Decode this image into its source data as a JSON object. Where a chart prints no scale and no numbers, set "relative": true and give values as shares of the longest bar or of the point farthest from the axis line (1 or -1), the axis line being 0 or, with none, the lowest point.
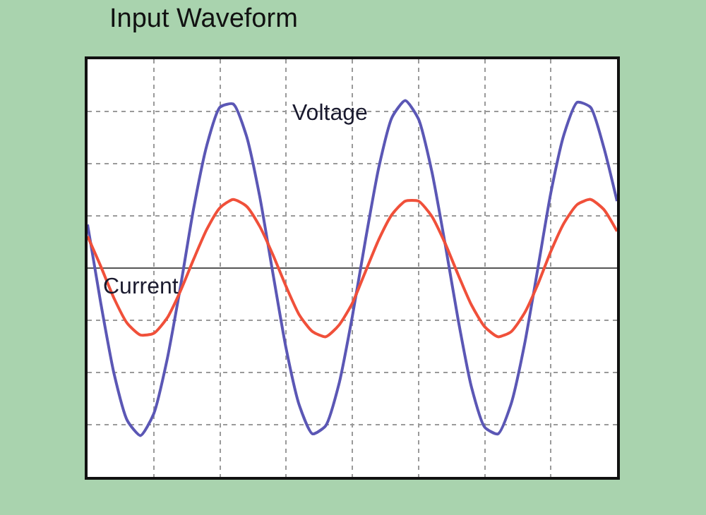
{
  "chart_data": {
    "type": "line",
    "title": "Input Waveform",
    "relative": true,
    "grid": true,
    "legend": false,
    "marker": "none",
    "line_style": "solid",
    "categories": [
      null,
      null,
      null,
      null,
      null,
      null,
      null,
      null,
      null,
      null,
      null,
      null,
      null,
      null,
      null,
      null,
      null,
      null,
      null,
      null,
      null,
      null,
      null,
      null,
      null,
      null,
      null,
      null,
      null,
      null,
      null,
      null,
      null,
      null,
      null,
      null,
      null,
      null,
      null,
      null,
      null
    ],
    "series": [
      {
        "name": "Voltage",
        "color": "#5b57b5",
        "values": [
          0.26,
          -0.21,
          -0.63,
          -0.91,
          -1.0,
          -0.87,
          -0.55,
          -0.12,
          0.35,
          0.73,
          0.96,
          0.98,
          0.79,
          0.43,
          -0.03,
          -0.48,
          -0.82,
          -0.99,
          -0.94,
          -0.69,
          -0.29,
          0.17,
          0.6,
          0.9,
          1.0,
          0.89,
          0.58,
          0.15,
          -0.31,
          -0.71,
          -0.95,
          -0.99,
          -0.81,
          -0.46,
          -0.01,
          0.45,
          0.8,
          0.99,
          0.96,
          0.72,
          0.4
        ]
      },
      {
        "name": "Current",
        "color": "#f0503a",
        "values": [
          0.19,
          0.01,
          -0.18,
          -0.33,
          -0.4,
          -0.39,
          -0.3,
          -0.14,
          0.05,
          0.23,
          0.36,
          0.41,
          0.37,
          0.25,
          0.08,
          -0.11,
          -0.28,
          -0.38,
          -0.41,
          -0.34,
          -0.21,
          -0.02,
          0.17,
          0.32,
          0.4,
          0.4,
          0.31,
          0.15,
          -0.04,
          -0.22,
          -0.35,
          -0.41,
          -0.38,
          -0.27,
          -0.1,
          0.1,
          0.27,
          0.38,
          0.41,
          0.35,
          0.22
        ]
      }
    ]
  }
}
